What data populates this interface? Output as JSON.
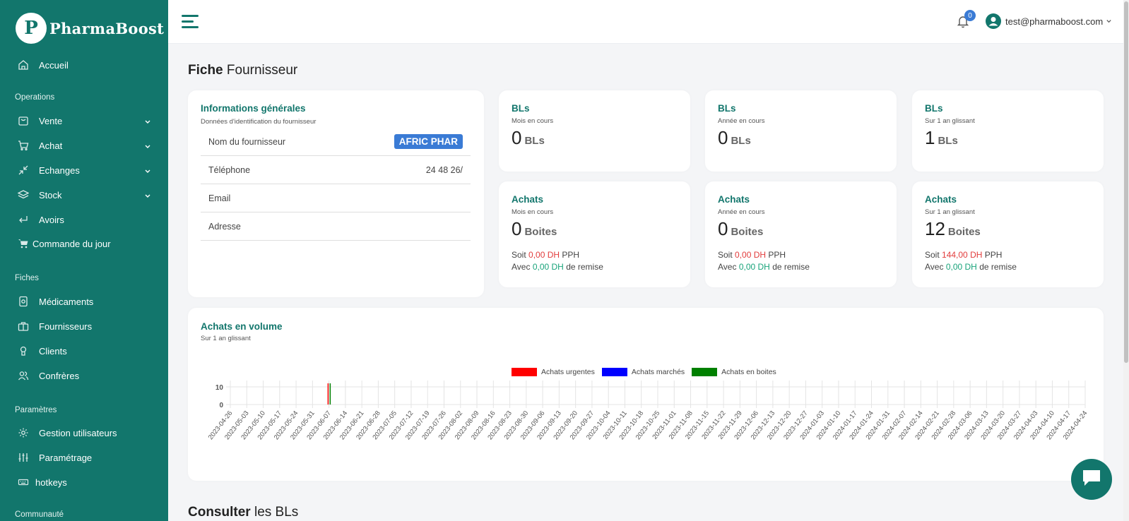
{
  "brand": {
    "logo_letter": "P",
    "name": "PharmaBoost"
  },
  "sidebar": {
    "home": "Accueil",
    "sections": {
      "operations": "Operations",
      "fiches": "Fiches",
      "parametres": "Paramètres",
      "communaute": "Communauté"
    },
    "items": {
      "vente": "Vente",
      "achat": "Achat",
      "echanges": "Echanges",
      "stock": "Stock",
      "avoirs": "Avoirs",
      "commande": "Commande du jour",
      "medicaments": "Médicaments",
      "fournisseurs": "Fournisseurs",
      "clients": "Clients",
      "confreres": "Confrères",
      "gestion": "Gestion utilisateurs",
      "parametrage": "Paramétrage",
      "hotkeys": "hotkeys"
    }
  },
  "topbar": {
    "notification_count": "0",
    "user_email": "test@pharmaboost.com"
  },
  "page": {
    "title_bold": "Fiche",
    "title_rest": "Fournisseur",
    "section_bold": "Consulter",
    "section_rest": "les BLs"
  },
  "info": {
    "title": "Informations générales",
    "subtitle": "Données d'identification du fournisseur",
    "rows": [
      {
        "label": "Nom du fournisseur",
        "value": "AFRIC PHAR"
      },
      {
        "label": "Téléphone",
        "value": "24 48 26/"
      },
      {
        "label": "Email",
        "value": ""
      },
      {
        "label": "Adresse",
        "value": ""
      }
    ]
  },
  "bls": [
    {
      "title": "BLs",
      "sub": "Mois en cours",
      "value": "0",
      "unit": "BLs"
    },
    {
      "title": "BLs",
      "sub": "Année en cours",
      "value": "0",
      "unit": "BLs"
    },
    {
      "title": "BLs",
      "sub": "Sur 1 an glissant",
      "value": "1",
      "unit": "BLs"
    }
  ],
  "achats": [
    {
      "title": "Achats",
      "sub": "Mois en cours",
      "value": "0",
      "unit": "Boites",
      "soit": "Soit",
      "pph_amount": "0,00 DH",
      "pph": "PPH",
      "avec": "Avec",
      "remise_amount": "0,00 DH",
      "remise": "de remise"
    },
    {
      "title": "Achats",
      "sub": "Année en cours",
      "value": "0",
      "unit": "Boites",
      "soit": "Soit",
      "pph_amount": "0,00 DH",
      "pph": "PPH",
      "avec": "Avec",
      "remise_amount": "0,00 DH",
      "remise": "de remise"
    },
    {
      "title": "Achats",
      "sub": "Sur 1 an glissant",
      "value": "12",
      "unit": "Boites",
      "soit": "Soit",
      "pph_amount": "144,00 DH",
      "pph": "PPH",
      "avec": "Avec",
      "remise_amount": "0,00 DH",
      "remise": "de remise"
    }
  ],
  "volume": {
    "title": "Achats en volume",
    "subtitle": "Sur 1 an glissant"
  },
  "colors": {
    "brand": "#12766c",
    "badge": "#3a7bd5",
    "negative": "#e23c3c",
    "positive": "#18a37a"
  },
  "icons": [
    "home-icon",
    "bag-icon",
    "cart-icon",
    "arrows-icon",
    "layers-icon",
    "return-icon",
    "cart-solid-icon",
    "pill-box-icon",
    "briefcase-icon",
    "user-icon",
    "users-icon",
    "gear-icon",
    "sliders-icon",
    "keyboard-icon",
    "bell-icon",
    "chevron-down-icon",
    "chat-icon"
  ],
  "chart_data": {
    "type": "bar",
    "title": "",
    "legend": "top-center",
    "ylim": [
      0,
      12
    ],
    "yticks": [
      0,
      10
    ],
    "grid": true,
    "categories": [
      "2023-04-26",
      "2023-05-03",
      "2023-05-10",
      "2023-05-17",
      "2023-05-24",
      "2023-05-31",
      "2023-06-07",
      "2023-06-14",
      "2023-06-21",
      "2023-06-28",
      "2023-07-05",
      "2023-07-12",
      "2023-07-19",
      "2023-07-26",
      "2023-08-02",
      "2023-08-09",
      "2023-08-16",
      "2023-08-23",
      "2023-08-30",
      "2023-09-06",
      "2023-09-13",
      "2023-09-20",
      "2023-09-27",
      "2023-10-04",
      "2023-10-11",
      "2023-10-18",
      "2023-10-25",
      "2023-11-01",
      "2023-11-08",
      "2023-11-15",
      "2023-11-22",
      "2023-11-29",
      "2023-12-06",
      "2023-12-13",
      "2023-12-20",
      "2023-12-27",
      "2024-01-03",
      "2024-01-10",
      "2024-01-17",
      "2024-01-24",
      "2024-01-31",
      "2024-02-07",
      "2024-02-14",
      "2024-02-21",
      "2024-02-28",
      "2024-03-06",
      "2024-03-13",
      "2024-03-20",
      "2024-03-27",
      "2024-04-03",
      "2024-04-10",
      "2024-04-17",
      "2024-04-24"
    ],
    "series": [
      {
        "name": "Achats urgentes",
        "color": "#ff0000",
        "values": [
          0,
          0,
          0,
          0,
          0,
          0,
          12,
          0,
          0,
          0,
          0,
          0,
          0,
          0,
          0,
          0,
          0,
          0,
          0,
          0,
          0,
          0,
          0,
          0,
          0,
          0,
          0,
          0,
          0,
          0,
          0,
          0,
          0,
          0,
          0,
          0,
          0,
          0,
          0,
          0,
          0,
          0,
          0,
          0,
          0,
          0,
          0,
          0,
          0,
          0,
          0,
          0,
          0
        ]
      },
      {
        "name": "Achats marchés",
        "color": "#0000ff",
        "values": [
          0,
          0,
          0,
          0,
          0,
          0,
          0,
          0,
          0,
          0,
          0,
          0,
          0,
          0,
          0,
          0,
          0,
          0,
          0,
          0,
          0,
          0,
          0,
          0,
          0,
          0,
          0,
          0,
          0,
          0,
          0,
          0,
          0,
          0,
          0,
          0,
          0,
          0,
          0,
          0,
          0,
          0,
          0,
          0,
          0,
          0,
          0,
          0,
          0,
          0,
          0,
          0,
          0
        ]
      },
      {
        "name": "Achats en boites",
        "color": "#008000",
        "values": [
          0,
          0,
          0,
          0,
          0,
          0,
          12,
          0,
          0,
          0,
          0,
          0,
          0,
          0,
          0,
          0,
          0,
          0,
          0,
          0,
          0,
          0,
          0,
          0,
          0,
          0,
          0,
          0,
          0,
          0,
          0,
          0,
          0,
          0,
          0,
          0,
          0,
          0,
          0,
          0,
          0,
          0,
          0,
          0,
          0,
          0,
          0,
          0,
          0,
          0,
          0,
          0,
          0
        ]
      }
    ]
  }
}
